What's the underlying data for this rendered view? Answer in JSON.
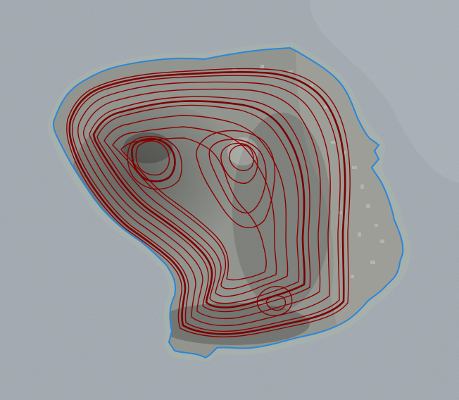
{
  "map": {
    "type": "satellite-topographic-overlay",
    "subject": "island",
    "colors": {
      "sea": "#9aa1a8",
      "sea_shallow": "#a9b3b2",
      "land": "#8a8d86",
      "coastline": "#2a86d8",
      "contour": "#8b0000"
    },
    "contour_levels": 18,
    "index_contour_every": 5
  }
}
